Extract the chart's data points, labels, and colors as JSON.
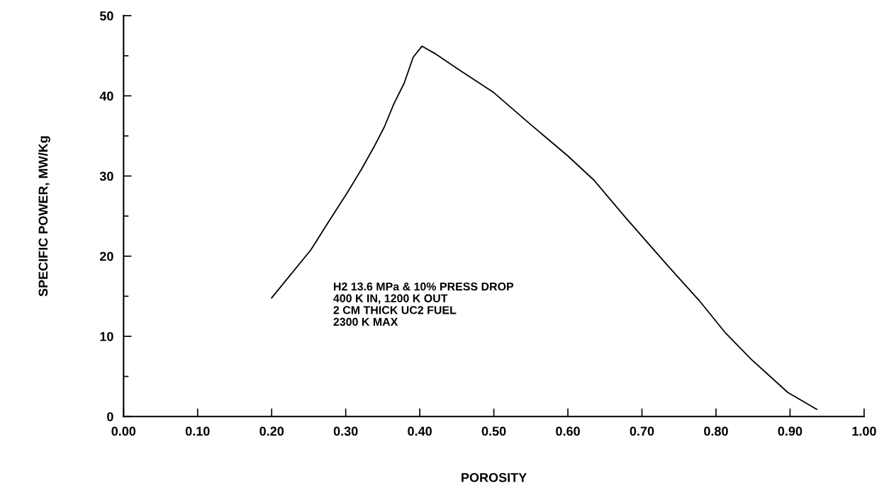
{
  "chart_data": {
    "type": "line",
    "xlabel": "POROSITY",
    "ylabel": "SPECIFIC POWER, MW/Kg",
    "x": [
      0.2,
      0.253,
      0.277,
      0.302,
      0.321,
      0.338,
      0.352,
      0.365,
      0.379,
      0.391,
      0.403,
      0.42,
      0.454,
      0.5,
      0.55,
      0.6,
      0.635,
      0.678,
      0.735,
      0.777,
      0.813,
      0.848,
      0.897,
      0.936
    ],
    "series": [
      {
        "color": "#000000",
        "values": [
          14.8,
          20.8,
          24.3,
          27.9,
          30.8,
          33.6,
          36.1,
          39.0,
          41.6,
          44.8,
          46.2,
          45.3,
          43.2,
          40.4,
          36.4,
          32.5,
          29.5,
          24.8,
          18.8,
          14.5,
          10.4,
          7.1,
          3.0,
          0.9
        ]
      }
    ],
    "xlim": [
      0,
      1.0
    ],
    "ylim": [
      0,
      50
    ],
    "xticks": [
      {
        "value": 0,
        "label": "0.00"
      },
      {
        "value": 0.1,
        "label": "0.10"
      },
      {
        "value": 0.2,
        "label": "0.20"
      },
      {
        "value": 0.3,
        "label": "0.30"
      },
      {
        "value": 0.4,
        "label": "0.40"
      },
      {
        "value": 0.5,
        "label": "0.50"
      },
      {
        "value": 0.6,
        "label": "0.60"
      },
      {
        "value": 0.7,
        "label": "0.70"
      },
      {
        "value": 0.8,
        "label": "0.80"
      },
      {
        "value": 0.9,
        "label": "0.90"
      },
      {
        "value": 1.0,
        "label": "1.00"
      }
    ],
    "yticks": [
      0,
      {
        "value": 5,
        "label": null
      },
      10,
      {
        "value": 15,
        "label": null
      },
      20,
      {
        "value": 25,
        "label": null
      },
      30,
      {
        "value": 35,
        "label": null
      },
      40,
      {
        "value": 45,
        "label": null
      },
      50
    ],
    "annotations": [
      "H2 13.6 MPa & 10% PRESS DROP\n400 K IN, 1200 K OUT\n2 CM THICK UC2 FUEL\n2300 K MAX"
    ],
    "grid": false,
    "legend": false,
    "marker": "none",
    "line_style": "solid"
  }
}
